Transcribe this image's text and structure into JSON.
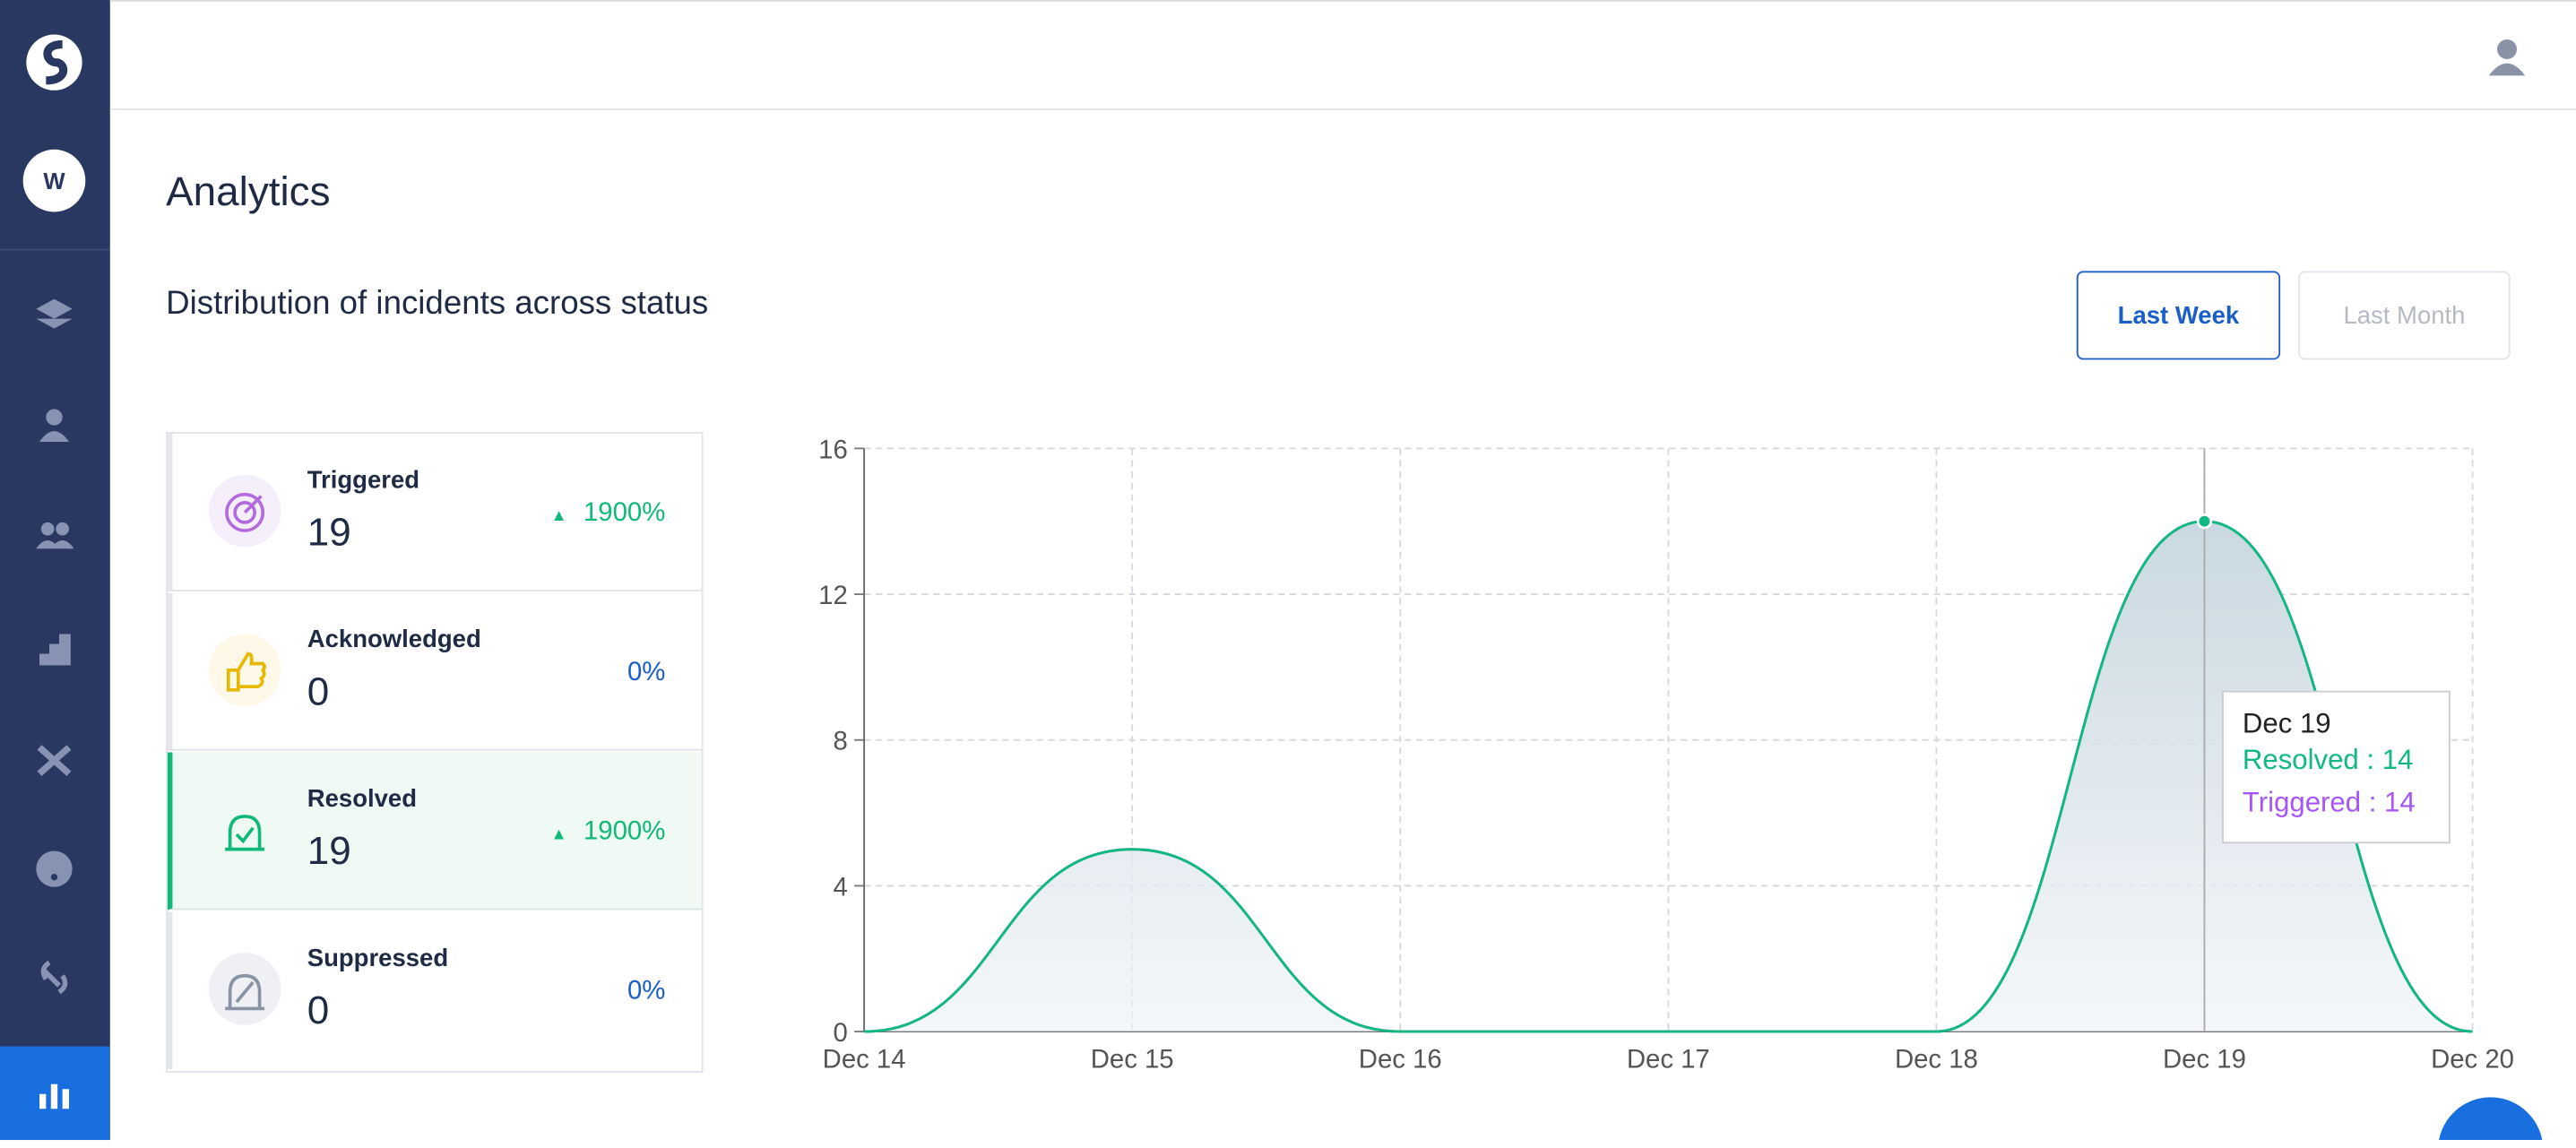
{
  "sidebar": {
    "workspace": "W"
  },
  "page": {
    "title": "Analytics",
    "section_title": "Distribution of incidents across status",
    "buttons": [
      "Last Week",
      "Last Month"
    ]
  },
  "statuses": [
    {
      "label": "Triggered",
      "count": 19,
      "change": "1900%"
    },
    {
      "label": "Acknowledged",
      "count": 0,
      "change": "0%"
    },
    {
      "label": "Resolved",
      "count": 19,
      "change": "1900%"
    },
    {
      "label": "Suppressed",
      "count": 0,
      "change": "0%"
    }
  ],
  "chart_data": {
    "type": "area",
    "categories": [
      "Dec 14",
      "Dec 15",
      "Dec 16",
      "Dec 17",
      "Dec 18",
      "Dec 19",
      "Dec 20"
    ],
    "series": [
      {
        "name": "Triggered",
        "color": "#a855f7",
        "values": [
          0,
          5,
          0,
          0,
          0,
          14,
          0
        ]
      },
      {
        "name": "Resolved",
        "color": "#10b981",
        "values": [
          0,
          5,
          0,
          0,
          0,
          14,
          0
        ]
      }
    ],
    "ylim": [
      0,
      16
    ],
    "yticks": [
      0,
      4,
      8,
      12,
      16
    ],
    "grid": true,
    "tooltip": {
      "title": "Dec 19",
      "lines": [
        "Resolved : 14",
        "Triggered : 14"
      ]
    }
  }
}
